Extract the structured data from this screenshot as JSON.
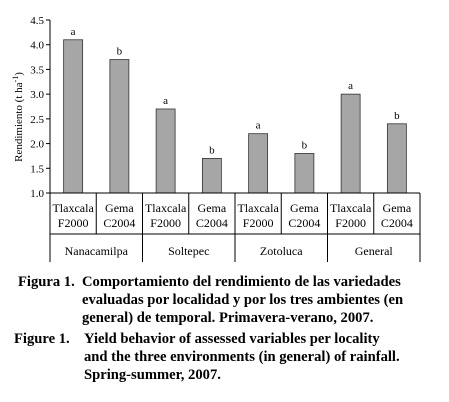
{
  "chart_data": {
    "type": "bar",
    "ylabel": "Rendimiento (t ha",
    "ylabel_sup": "-1",
    "ylabel_close": ")",
    "ylim": [
      1.0,
      4.5
    ],
    "yticks": [
      "1.0",
      "1.5",
      "2.0",
      "2.5",
      "3.0",
      "3.5",
      "4.0",
      "4.5"
    ],
    "grid": false,
    "groups": [
      {
        "name": "Nanacamilpa",
        "bars": [
          {
            "line1": "Tlaxcala",
            "line2": "F2000",
            "value": 4.1,
            "letter": "a"
          },
          {
            "line1": "Gema",
            "line2": "C2004",
            "value": 3.7,
            "letter": "b"
          }
        ]
      },
      {
        "name": "Soltepec",
        "bars": [
          {
            "line1": "Tlaxcala",
            "line2": "F2000",
            "value": 2.7,
            "letter": "a"
          },
          {
            "line1": "Gema",
            "line2": "C2004",
            "value": 1.7,
            "letter": "b"
          }
        ]
      },
      {
        "name": "Zotoluca",
        "bars": [
          {
            "line1": "Tlaxcala",
            "line2": "F2000",
            "value": 2.2,
            "letter": "a"
          },
          {
            "line1": "Gema",
            "line2": "C2004",
            "value": 1.8,
            "letter": "b"
          }
        ]
      },
      {
        "name": "General",
        "bars": [
          {
            "line1": "Tlaxcala",
            "line2": "F2000",
            "value": 3.0,
            "letter": "a"
          },
          {
            "line1": "Gema",
            "line2": "C2004",
            "value": 2.4,
            "letter": "b"
          }
        ]
      }
    ],
    "bar_color": "#a6a6a6",
    "bar_edge": "#333333"
  },
  "caption": {
    "spanish": {
      "label": "Figura 1.",
      "lines": [
        "Comportamiento del rendimiento de las variedades",
        "evaluadas por localidad y por los tres ambientes (en",
        "general) de temporal. Primavera-verano, 2007."
      ]
    },
    "english": {
      "label": "Figure 1.",
      "lines": [
        "Yield behavior of assessed variables per locality",
        "and the three environments (in general) of rainfall.",
        "Spring-summer, 2007."
      ]
    }
  }
}
